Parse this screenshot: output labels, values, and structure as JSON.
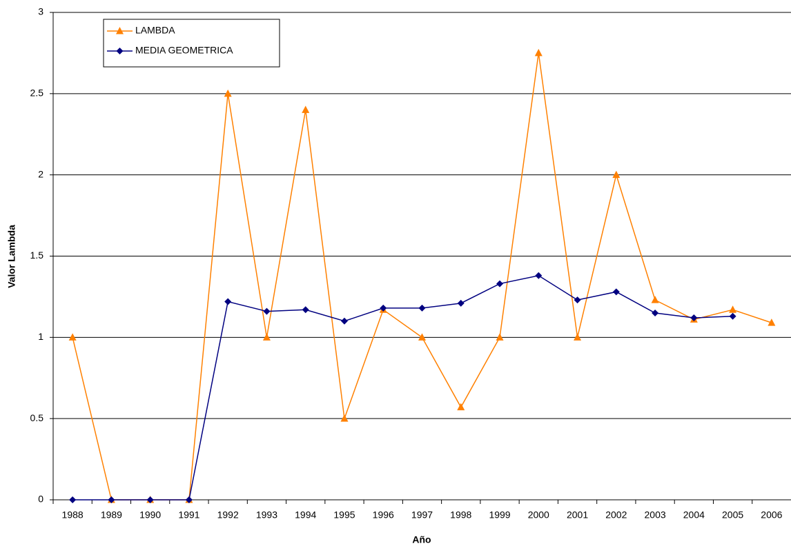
{
  "chart_data": {
    "type": "line",
    "x_label": "Año",
    "y_label": "Valor Lambda",
    "categories": [
      "1988",
      "1989",
      "1990",
      "1991",
      "1992",
      "1993",
      "1994",
      "1995",
      "1996",
      "1997",
      "1998",
      "1999",
      "2000",
      "2001",
      "2002",
      "2003",
      "2004",
      "2005",
      "2006"
    ],
    "series": [
      {
        "name": "LAMBDA",
        "color": "#ff8000",
        "marker": "triangle",
        "values": [
          1,
          0,
          0,
          0,
          2.5,
          1,
          2.4,
          0.5,
          1.17,
          1,
          0.57,
          1,
          2.75,
          1,
          2,
          1.23,
          1.11,
          1.17,
          1.09
        ]
      },
      {
        "name": "MEDIA GEOMETRICA",
        "color": "#000080",
        "marker": "diamond",
        "values": [
          0,
          0,
          0,
          0,
          1.22,
          1.16,
          1.17,
          1.1,
          1.18,
          1.18,
          1.21,
          1.33,
          1.38,
          1.23,
          1.28,
          1.15,
          1.12,
          1.13,
          null
        ]
      }
    ],
    "ylim": [
      0,
      3
    ],
    "yticks": [
      0,
      0.5,
      1,
      1.5,
      2,
      2.5,
      3
    ],
    "grid": true,
    "legend": "upper left"
  }
}
